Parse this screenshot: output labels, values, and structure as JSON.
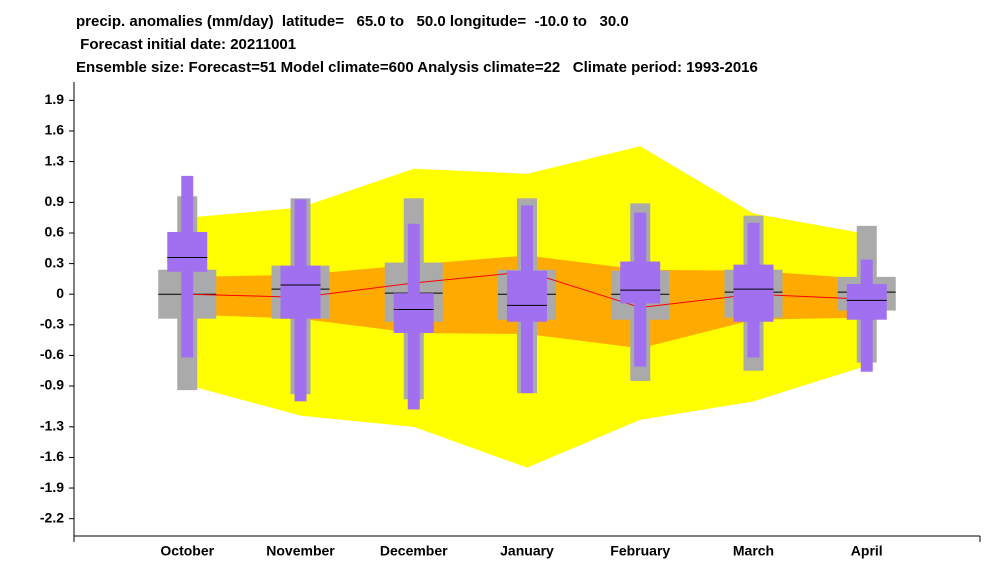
{
  "chart_data": {
    "type": "climagram",
    "title_lines": [
      "precip. anomalies (mm/day)  latitude=   65.0 to   50.0 longitude=  -10.0 to   30.0",
      " Forecast initial date: 20211001",
      "Ensemble size: Forecast=51 Model climate=600 Analysis climate=22   Climate period: 1993-2016"
    ],
    "categories": [
      "October",
      "November",
      "December",
      "January",
      "February",
      "March",
      "April"
    ],
    "ylim": [
      -2.37,
      2.08
    ],
    "yticks": [
      1.9,
      1.6,
      1.3,
      0.9,
      0.6,
      0.3,
      0.0,
      -0.3,
      -0.6,
      -0.9,
      -1.3,
      -1.6,
      -1.9,
      -2.2
    ],
    "outer_band": {
      "color": "#ffff00",
      "high": [
        0.75,
        0.85,
        1.23,
        1.18,
        1.45,
        0.79,
        0.59
      ],
      "low": [
        -0.89,
        -1.19,
        -1.3,
        -1.7,
        -1.23,
        -1.05,
        -0.7
      ]
    },
    "inner_band": {
      "color": "#ffaa00",
      "high": [
        0.17,
        0.19,
        0.29,
        0.38,
        0.24,
        0.23,
        0.15
      ],
      "low": [
        -0.2,
        -0.24,
        -0.38,
        -0.39,
        -0.53,
        -0.25,
        -0.23
      ]
    },
    "median_line": {
      "color": "#ff0000",
      "values": [
        0.0,
        -0.03,
        0.11,
        0.22,
        -0.13,
        0.0,
        -0.05
      ]
    },
    "model_climate": {
      "color": "#aaaaaa",
      "low": [
        -0.94,
        -0.98,
        -1.03,
        -0.97,
        -0.85,
        -0.75,
        -0.67
      ],
      "q1": [
        -0.24,
        -0.24,
        -0.27,
        -0.25,
        -0.25,
        -0.23,
        -0.16
      ],
      "median": [
        0.0,
        0.05,
        0.01,
        0.0,
        0.0,
        0.02,
        0.02
      ],
      "q3": [
        0.24,
        0.28,
        0.31,
        0.24,
        0.23,
        0.24,
        0.17
      ],
      "high": [
        0.96,
        0.94,
        0.94,
        0.94,
        0.89,
        0.77,
        0.67
      ]
    },
    "forecast": {
      "color": "#a070f0",
      "low": [
        -0.62,
        -1.05,
        -1.13,
        -0.97,
        -0.71,
        -0.62,
        -0.76
      ],
      "q1": [
        0.22,
        -0.24,
        -0.38,
        -0.27,
        -0.09,
        -0.27,
        -0.25
      ],
      "median": [
        0.36,
        0.09,
        -0.15,
        -0.11,
        0.04,
        0.05,
        -0.06
      ],
      "q3": [
        0.61,
        0.28,
        0.01,
        0.23,
        0.32,
        0.29,
        0.1
      ],
      "high": [
        1.16,
        0.93,
        0.69,
        0.87,
        0.8,
        0.7,
        0.34
      ]
    }
  }
}
